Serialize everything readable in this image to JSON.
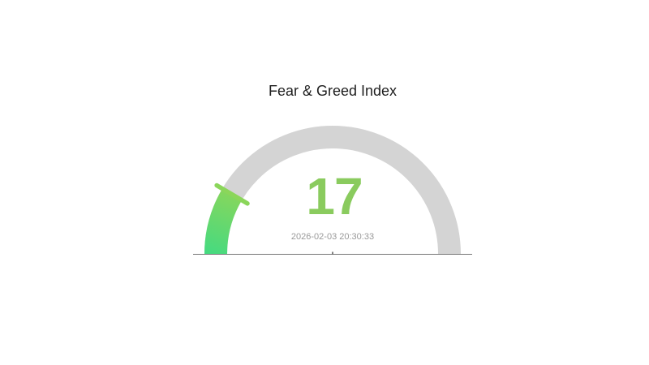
{
  "page": {
    "background_color": "#ffffff"
  },
  "chart_data": {
    "type": "gauge",
    "title": "Fear & Greed Index",
    "value": 17,
    "min": 0,
    "max": 100,
    "start_angle": 180,
    "end_angle": 0,
    "timestamp": "2026-02-03 20:30:33",
    "legend": "none",
    "grid": "off",
    "colors": {
      "track": "#d4d4d4",
      "progress_start": "#45da80",
      "progress_end": "#8bd65a",
      "pointer_tick": "#8bd65a",
      "value_text": "#8acb5e",
      "title_text": "#1f1f1f",
      "timestamp_text": "#999999",
      "baseline": "#767676",
      "center_mark": "#555555"
    }
  }
}
